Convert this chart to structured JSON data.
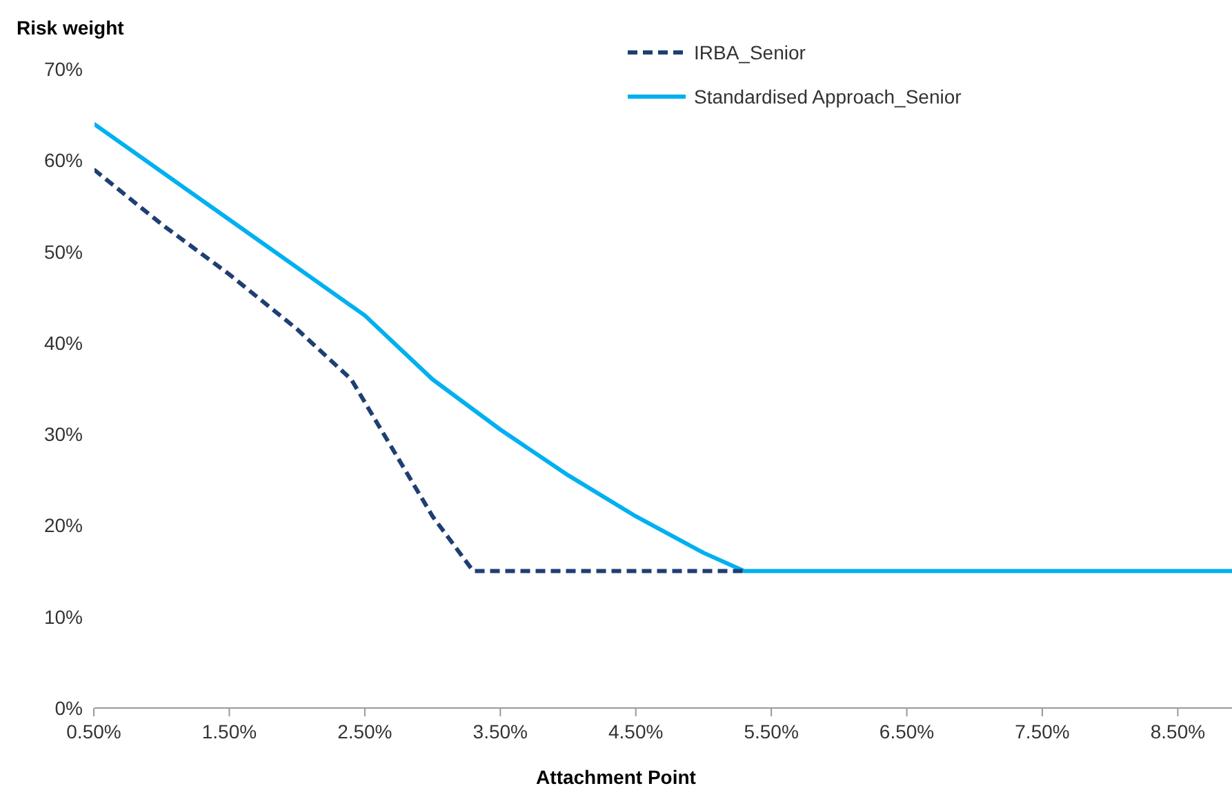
{
  "chart_data": {
    "type": "line",
    "ylabel": "Risk weight",
    "xlabel": "Attachment Point",
    "series": [
      {
        "name": "IRBA_Senior",
        "color": "#1f3f73",
        "line_style": "dashed",
        "x": [
          0.5,
          1.0,
          1.5,
          2.0,
          2.4,
          2.6,
          3.0,
          3.3,
          5.3
        ],
        "values": [
          59,
          53,
          47.5,
          41.5,
          36,
          31,
          21,
          15,
          15
        ]
      },
      {
        "name": "Standardised Approach_Senior",
        "color": "#00b0f0",
        "line_style": "solid",
        "x": [
          0.5,
          1.5,
          2.5,
          3.0,
          3.5,
          4.0,
          4.5,
          5.0,
          5.3,
          8.9
        ],
        "values": [
          64,
          53.5,
          43,
          36,
          30.5,
          25.5,
          21,
          17,
          15,
          15
        ]
      }
    ],
    "xlim": [
      0.5,
      8.9
    ],
    "xticks": [
      {
        "value": 0.5,
        "label": "0.50%"
      },
      {
        "value": 1.5,
        "label": "1.50%"
      },
      {
        "value": 2.5,
        "label": "2.50%"
      },
      {
        "value": 3.5,
        "label": "3.50%"
      },
      {
        "value": 4.5,
        "label": "4.50%"
      },
      {
        "value": 5.5,
        "label": "5.50%"
      },
      {
        "value": 6.5,
        "label": "6.50%"
      },
      {
        "value": 7.5,
        "label": "7.50%"
      },
      {
        "value": 8.5,
        "label": "8.50%"
      }
    ],
    "ylim": [
      0,
      70
    ],
    "yticks": [
      {
        "value": 0,
        "label": "0%"
      },
      {
        "value": 10,
        "label": "10%"
      },
      {
        "value": 20,
        "label": "20%"
      },
      {
        "value": 30,
        "label": "30%"
      },
      {
        "value": 40,
        "label": "40%"
      },
      {
        "value": 50,
        "label": "50%"
      },
      {
        "value": 60,
        "label": "60%"
      },
      {
        "value": 70,
        "label": "70%"
      }
    ],
    "grid": false,
    "legend": "top",
    "marker": "none"
  }
}
